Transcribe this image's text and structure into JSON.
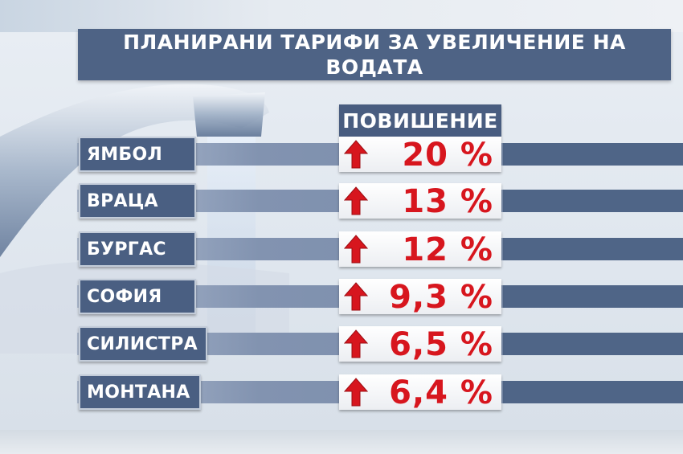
{
  "title": "ПЛАНИРАНИ  ТАРИФИ ЗА УВЕЛИЧЕНИЕ НА ВОДАТА",
  "column_header": "ПОВИШЕНИЕ",
  "accent_color": "#d7161e",
  "bar_color": "#4a5f82",
  "rows": [
    {
      "city": "ЯМБОЛ",
      "value": "20 %",
      "icon": "up-arrow-icon"
    },
    {
      "city": "ВРАЦА",
      "value": "13 %",
      "icon": "up-arrow-icon"
    },
    {
      "city": "БУРГАС",
      "value": "12 %",
      "icon": "up-arrow-icon"
    },
    {
      "city": "СОФИЯ",
      "value": "9,3 %",
      "icon": "up-arrow-icon"
    },
    {
      "city": "СИЛИСТРА",
      "value": "6,5 %",
      "icon": "up-arrow-icon"
    },
    {
      "city": "МОНТАНА",
      "value": "6,4 %",
      "icon": "up-arrow-icon"
    }
  ]
}
